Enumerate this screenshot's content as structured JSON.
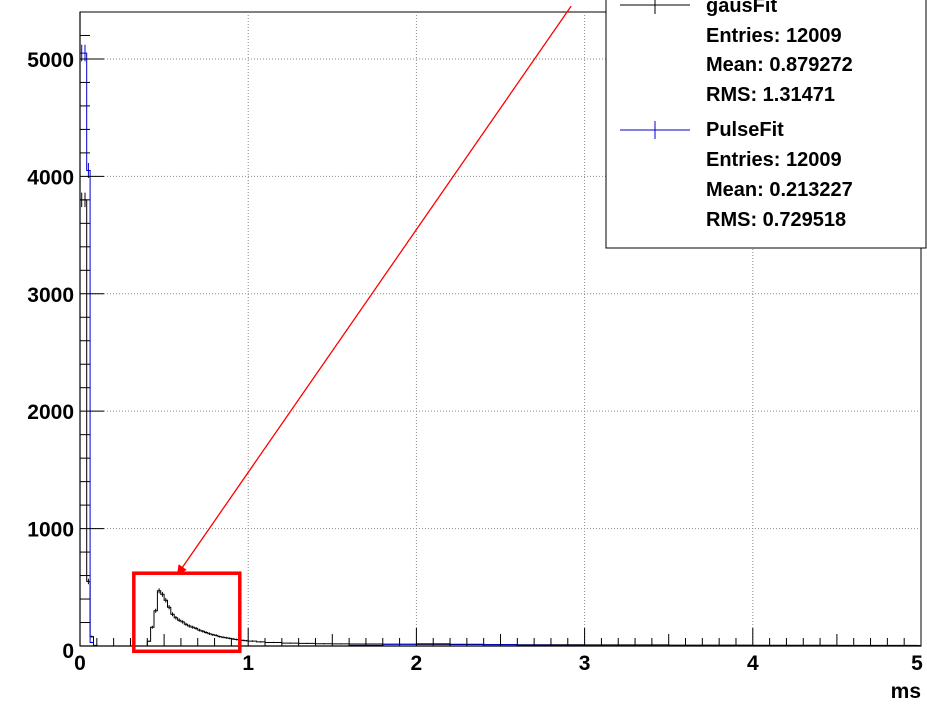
{
  "chart_data": {
    "type": "line",
    "subtype": "histogram",
    "xlabel": "ms",
    "ylabel": "",
    "xlim": [
      0,
      5
    ],
    "ylim": [
      0,
      5400
    ],
    "grid": true,
    "x_ticks": [
      "0",
      "1",
      "2",
      "3",
      "4",
      "5"
    ],
    "y_ticks": [
      "0",
      "1000",
      "2000",
      "3000",
      "4000",
      "5000"
    ],
    "colors": {
      "gausFit": "#000000",
      "PulseFit": "#0000cc",
      "annotation": "#ff0000"
    },
    "legend_position": "top-right",
    "series": [
      {
        "name": "gausFit",
        "color": "#000000",
        "x": [
          0.0,
          0.02,
          0.04,
          0.06,
          0.08,
          0.1,
          0.12,
          0.14,
          0.16,
          0.18,
          0.2,
          0.22,
          0.24,
          0.26,
          0.28,
          0.3,
          0.32,
          0.34,
          0.36,
          0.38,
          0.4,
          0.42,
          0.44,
          0.46,
          0.48,
          0.5,
          0.52,
          0.54,
          0.56,
          0.58,
          0.6,
          0.62,
          0.64,
          0.66,
          0.68,
          0.7,
          0.72,
          0.74,
          0.76,
          0.78,
          0.8,
          0.82,
          0.84,
          0.86,
          0.88,
          0.9,
          0.92,
          0.94,
          0.96,
          0.98,
          1.0,
          1.05,
          1.1,
          1.2,
          1.3,
          1.4,
          1.5,
          1.6,
          1.8,
          2.0,
          2.2,
          2.4,
          2.6,
          2.8,
          3.0,
          3.5,
          4.0,
          4.5,
          4.98
        ],
        "values": [
          3800,
          3800,
          550,
          80,
          0,
          0,
          0,
          0,
          0,
          0,
          0,
          0,
          0,
          0,
          0,
          0,
          0,
          0,
          0,
          0,
          40,
          160,
          300,
          470,
          440,
          390,
          330,
          270,
          240,
          220,
          205,
          185,
          170,
          160,
          150,
          135,
          125,
          115,
          105,
          95,
          90,
          80,
          75,
          70,
          65,
          60,
          55,
          50,
          48,
          45,
          42,
          35,
          30,
          25,
          22,
          20,
          18,
          17,
          15,
          14,
          13,
          12,
          11,
          10,
          9,
          8,
          6,
          5,
          4
        ]
      },
      {
        "name": "PulseFit",
        "color": "#0000cc",
        "x": [
          0.0,
          0.02,
          0.04,
          0.06,
          0.08,
          0.1,
          0.3,
          1.0,
          1.5,
          1.6,
          1.8,
          2.0,
          2.2,
          2.4,
          2.6,
          2.8,
          3.0,
          4.0,
          4.98
        ],
        "values": [
          5050,
          5050,
          4050,
          30,
          5,
          0,
          0,
          0,
          0,
          5,
          15,
          20,
          15,
          12,
          8,
          5,
          3,
          2,
          1
        ]
      }
    ],
    "legend": [
      {
        "name": "gausFit",
        "entries": "Entries: 12009",
        "mean": "Mean: 0.879272",
        "rms": "RMS: 1.31471"
      },
      {
        "name": "PulseFit",
        "entries": "Entries: 12009",
        "mean": "Mean: 0.213227",
        "rms": "RMS: 0.729518"
      }
    ],
    "annotations": [
      {
        "type": "box",
        "x_range": [
          0.32,
          0.95
        ],
        "y_range": [
          -45,
          620
        ]
      },
      {
        "type": "arrow",
        "from": [
          2.92,
          5450
        ],
        "to": [
          0.58,
          610
        ]
      }
    ]
  }
}
